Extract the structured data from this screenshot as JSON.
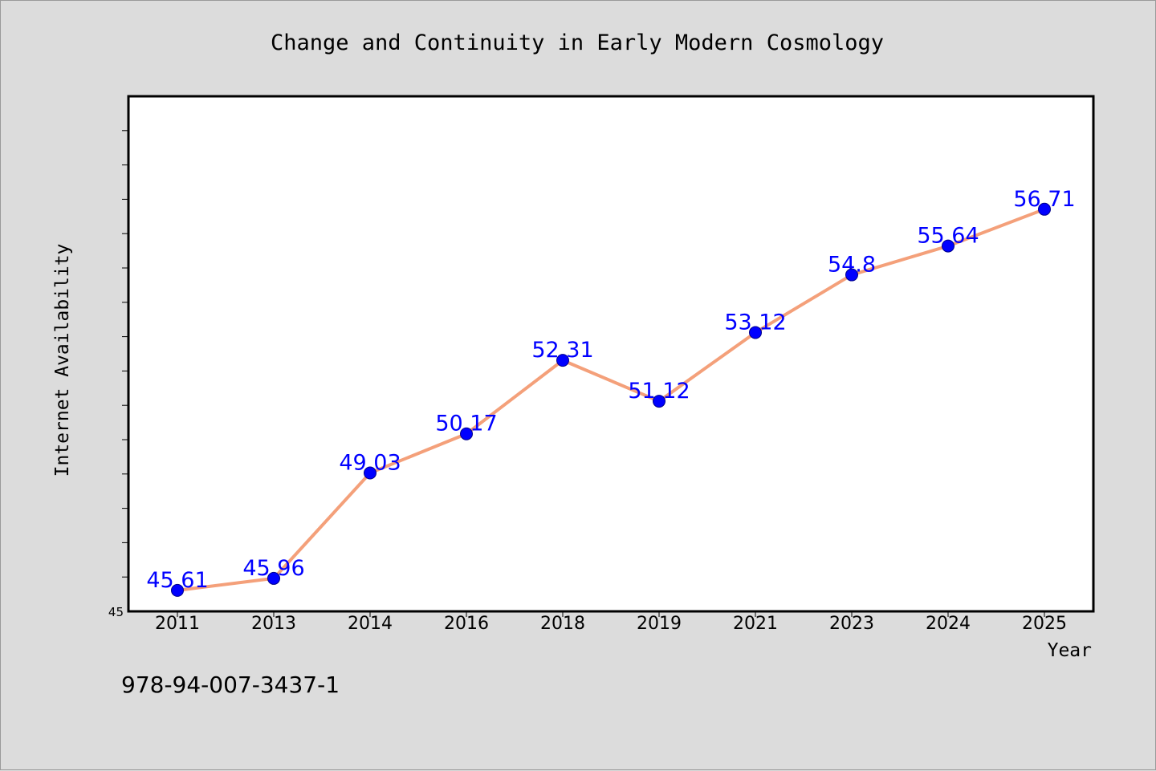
{
  "chart_data": {
    "type": "line",
    "title": "Change and Continuity in Early Modern Cosmology",
    "xlabel": "Year",
    "ylabel": "Internet Availability",
    "categories": [
      "2011",
      "2013",
      "2014",
      "2016",
      "2018",
      "2019",
      "2021",
      "2023",
      "2024",
      "2025"
    ],
    "values": [
      45.61,
      45.96,
      49.03,
      50.17,
      52.31,
      51.12,
      53.12,
      54.8,
      55.64,
      56.71
    ],
    "data_labels": [
      "45.61",
      "45.96",
      "49.03",
      "50.17",
      "52.31",
      "51.12",
      "53.12",
      "54.8",
      "55.64",
      "56.71"
    ],
    "y_tick_label": "45",
    "ylim": [
      45,
      60
    ],
    "grid": false,
    "line_color": "#f4a07a",
    "marker_color": "#0000ff",
    "label_color": "#0000ff"
  },
  "footer": {
    "isbn": "978-94-007-3437-1"
  }
}
